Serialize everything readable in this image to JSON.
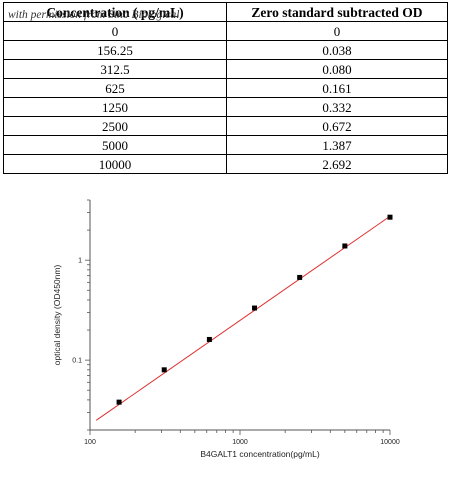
{
  "watermark": "with permission from Sino Biological",
  "table": {
    "headers": [
      "Concentration ( pg/mL)",
      "Zero standard subtracted OD"
    ],
    "rows": [
      [
        "0",
        "0"
      ],
      [
        "156.25",
        "0.038"
      ],
      [
        "312.5",
        "0.080"
      ],
      [
        "625",
        "0.161"
      ],
      [
        "1250",
        "0.332"
      ],
      [
        "2500",
        "0.672"
      ],
      [
        "5000",
        "1.387"
      ],
      [
        "10000",
        "2.692"
      ]
    ]
  },
  "chart_data": {
    "type": "scatter",
    "xlabel": "B4GALT1  concentration(pg/mL)",
    "ylabel": "optical density (OD450nm)",
    "x_scale": "log",
    "y_scale": "log",
    "xlim": [
      100,
      10000
    ],
    "ylim": [
      0.02,
      4
    ],
    "x_ticks": [
      100,
      1000,
      10000
    ],
    "x_tick_labels": [
      "100",
      "1000",
      "10000"
    ],
    "y_ticks": [
      0.1,
      1
    ],
    "y_tick_labels": [
      "0.1",
      "1"
    ],
    "points": {
      "x": [
        156.25,
        312.5,
        625,
        1250,
        2500,
        5000,
        10000
      ],
      "y": [
        0.038,
        0.08,
        0.161,
        0.332,
        0.672,
        1.387,
        2.692
      ]
    },
    "fit_line": {
      "x": [
        110,
        10000
      ],
      "y": [
        0.025,
        2.75
      ]
    },
    "marker_color": "#000000",
    "line_color": "#e03030",
    "grid": false
  }
}
